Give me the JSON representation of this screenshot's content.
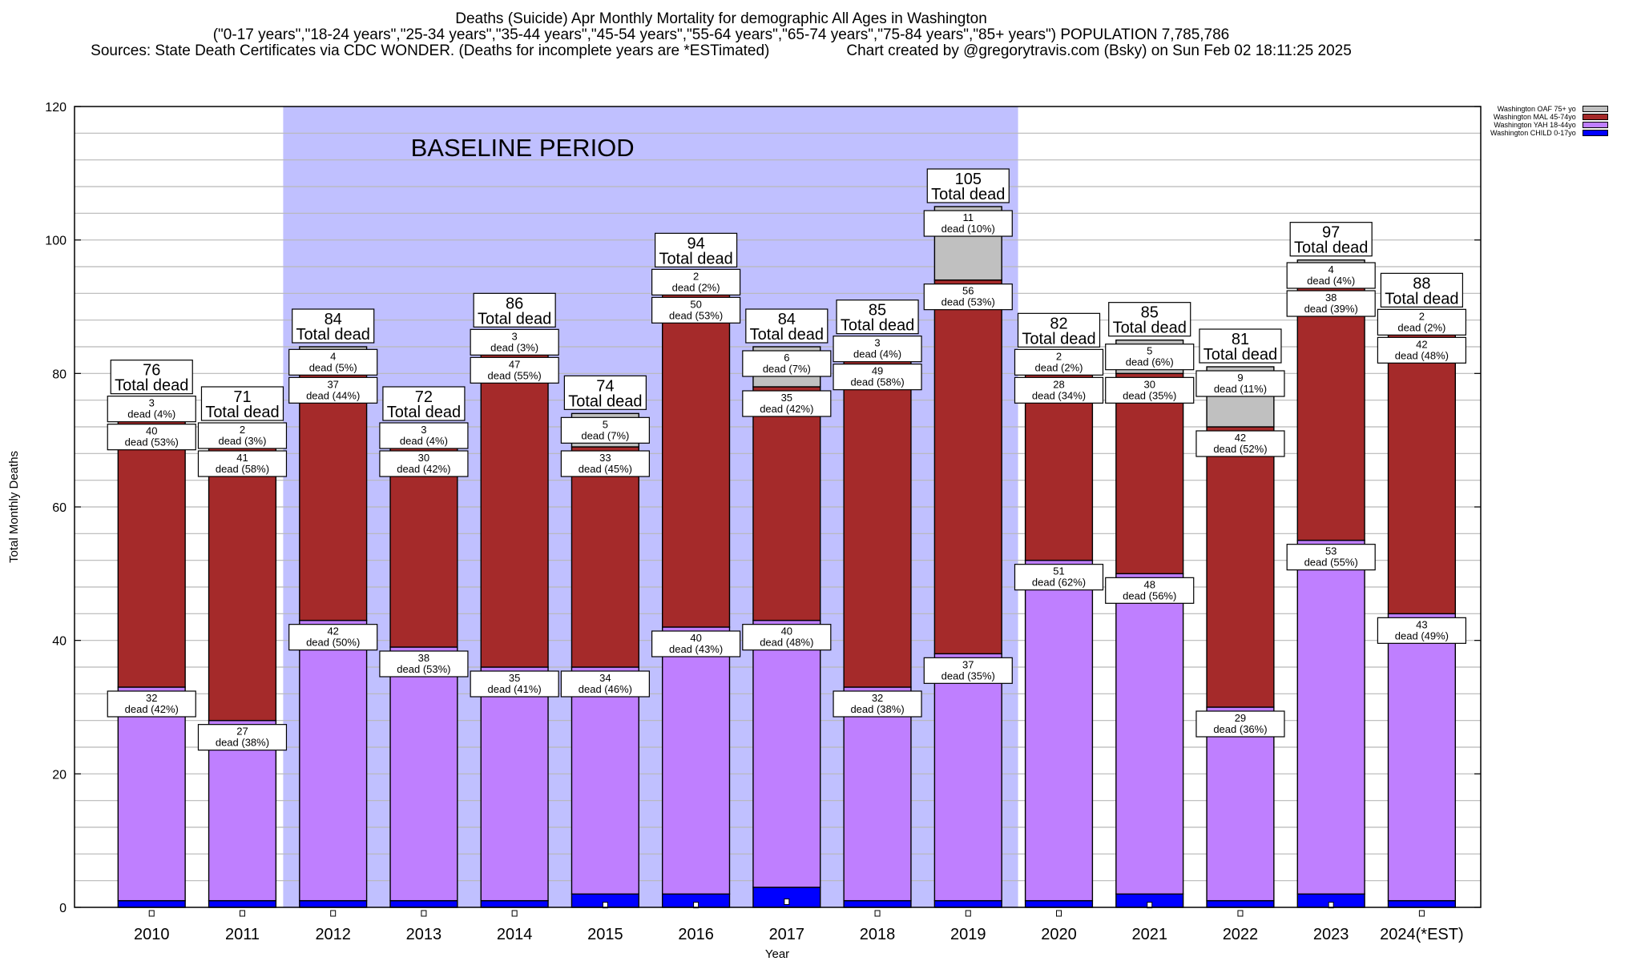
{
  "header": {
    "title_line1": "Deaths (Suicide) Apr Monthly Mortality for demographic All Ages in Washington",
    "title_line2": "(\"0-17 years\",\"18-24 years\",\"25-34 years\",\"35-44 years\",\"45-54 years\",\"55-64 years\",\"65-74 years\",\"75-84 years\",\"85+ years\") POPULATION 7,785,786",
    "sources": "Sources: State Death Certificates via CDC WONDER. (Deaths for incomplete years are *ESTimated)",
    "credit": "Chart created by @gregorytravis.com (Bsky) on Sun Feb 02 18:11:25 2025"
  },
  "chart_data": {
    "type": "bar",
    "stacked": true,
    "title": "Deaths (Suicide) Apr Monthly Mortality for demographic All Ages in Washington",
    "xlabel": "Year",
    "ylabel": "Total Monthly Deaths",
    "ylim": [
      0,
      120
    ],
    "yticks": [
      0,
      20,
      40,
      60,
      80,
      100,
      120
    ],
    "grid": true,
    "legend_position": "top-right",
    "categories": [
      "2010",
      "2011",
      "2012",
      "2013",
      "2014",
      "2015",
      "2016",
      "2017",
      "2018",
      "2019",
      "2020",
      "2021",
      "2022",
      "2023",
      "2024(*EST)"
    ],
    "series": [
      {
        "name": "Washington CHILD 0-17yo",
        "color": "#0000ff",
        "values": [
          1,
          1,
          1,
          1,
          1,
          2,
          2,
          3,
          1,
          1,
          1,
          2,
          1,
          2,
          1
        ]
      },
      {
        "name": "Washington YAH 18-44yo",
        "color": "#bf7fff",
        "values": [
          32,
          27,
          42,
          38,
          35,
          34,
          40,
          40,
          32,
          37,
          51,
          48,
          29,
          53,
          43
        ],
        "pct": [
          42,
          38,
          50,
          53,
          41,
          46,
          43,
          48,
          38,
          35,
          62,
          56,
          36,
          55,
          49
        ]
      },
      {
        "name": "Washington MAL 45-74yo",
        "color": "#a52a2a",
        "values": [
          40,
          41,
          37,
          30,
          47,
          33,
          50,
          35,
          49,
          56,
          28,
          30,
          42,
          38,
          42
        ],
        "pct": [
          53,
          58,
          44,
          42,
          55,
          45,
          53,
          42,
          58,
          53,
          34,
          35,
          52,
          39,
          48
        ]
      },
      {
        "name": "Washington OAF 75+ yo",
        "color": "#c0c0c0",
        "values": [
          3,
          2,
          4,
          3,
          3,
          5,
          2,
          6,
          3,
          11,
          2,
          5,
          9,
          4,
          2
        ],
        "pct": [
          4,
          3,
          5,
          4,
          3,
          7,
          2,
          7,
          4,
          10,
          2,
          6,
          11,
          4,
          2
        ]
      }
    ],
    "totals": [
      76,
      71,
      84,
      72,
      86,
      74,
      94,
      84,
      85,
      105,
      82,
      85,
      81,
      97,
      88
    ],
    "total_label_suffix": "Total dead",
    "segment_label_prefix": "dead",
    "annotation": {
      "text": "BASELINE PERIOD",
      "start_category": "2012",
      "end_category": "2019",
      "color": "#c0c0ff"
    }
  }
}
